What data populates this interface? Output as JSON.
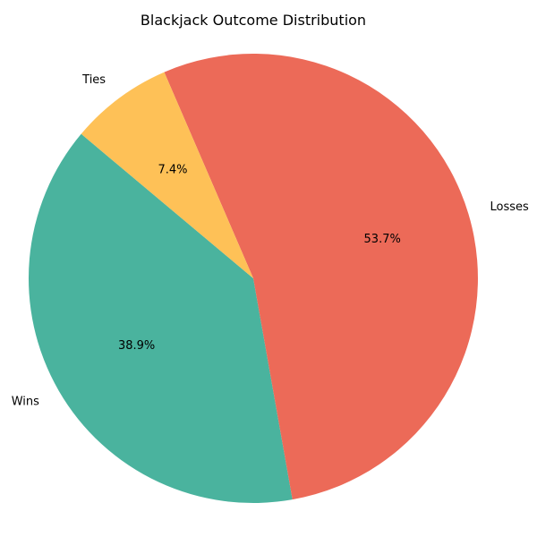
{
  "chart_data": {
    "type": "pie",
    "title": "Blackjack Outcome Distribution",
    "slices": [
      {
        "label": "Wins",
        "value": 38.9,
        "pct_label": "38.9%",
        "color": "#4ab39e"
      },
      {
        "label": "Losses",
        "value": 53.7,
        "pct_label": "53.7%",
        "color": "#ec6a58"
      },
      {
        "label": "Ties",
        "value": 7.4,
        "pct_label": "7.4%",
        "color": "#fec157"
      }
    ],
    "start_angle_deg": 140,
    "direction": "counterclockwise"
  }
}
